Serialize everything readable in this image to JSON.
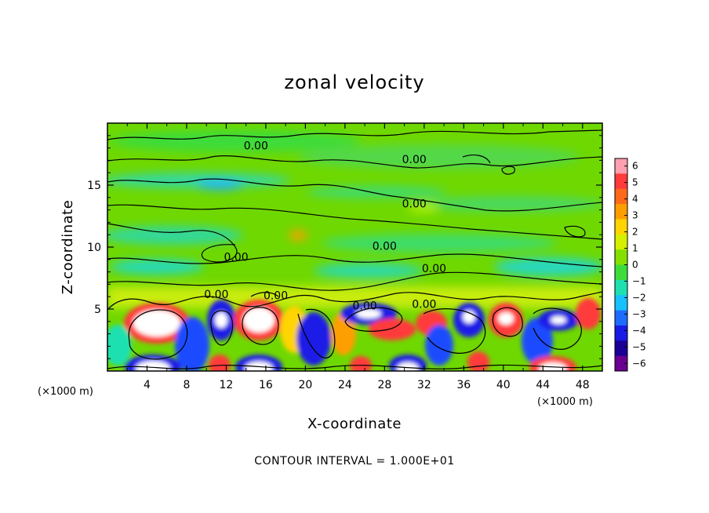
{
  "chart_data": {
    "type": "heatmap",
    "title": "zonal velocity",
    "xlabel": "X-coordinate",
    "ylabel": "Z-coordinate",
    "x_units": "(×1000 m)",
    "y_units": "(×1000 m)",
    "xlim": [
      0,
      50
    ],
    "ylim": [
      0,
      20
    ],
    "x_ticks": [
      4,
      8,
      12,
      16,
      20,
      24,
      28,
      32,
      36,
      40,
      44,
      48
    ],
    "y_ticks": [
      5,
      10,
      15
    ],
    "contour_labels": [
      {
        "x": 15,
        "z": 18.2,
        "text": "0.00"
      },
      {
        "x": 31,
        "z": 17.1,
        "text": "0.00"
      },
      {
        "x": 31,
        "z": 13.5,
        "text": "0.00"
      },
      {
        "x": 13,
        "z": 9.2,
        "text": "0.00"
      },
      {
        "x": 28,
        "z": 10.1,
        "text": "0.00"
      },
      {
        "x": 33,
        "z": 8.3,
        "text": "0.00"
      },
      {
        "x": 11,
        "z": 6.2,
        "text": "0.00"
      },
      {
        "x": 17,
        "z": 6.1,
        "text": "0.00"
      },
      {
        "x": 26,
        "z": 5.3,
        "text": "0.00"
      },
      {
        "x": 32,
        "z": 5.4,
        "text": "0.00"
      }
    ],
    "colorbar": {
      "min": -6,
      "max": 6,
      "ticks": [
        "6",
        "5",
        "4",
        "3",
        "2",
        "1",
        "0",
        "−1",
        "−2",
        "−3",
        "−4",
        "−5",
        "−6"
      ],
      "colors": [
        "#ff9fb0",
        "#ff3b3b",
        "#ff6a1a",
        "#ff9e00",
        "#ffd400",
        "#d4f000",
        "#84e000",
        "#3edc3a",
        "#1ee0b0",
        "#17c0ff",
        "#1e6cff",
        "#1a1ae6",
        "#1a0096",
        "#6a0090"
      ]
    },
    "contour_interval": "CONTOUR INTERVAL = 1.000E+01"
  }
}
